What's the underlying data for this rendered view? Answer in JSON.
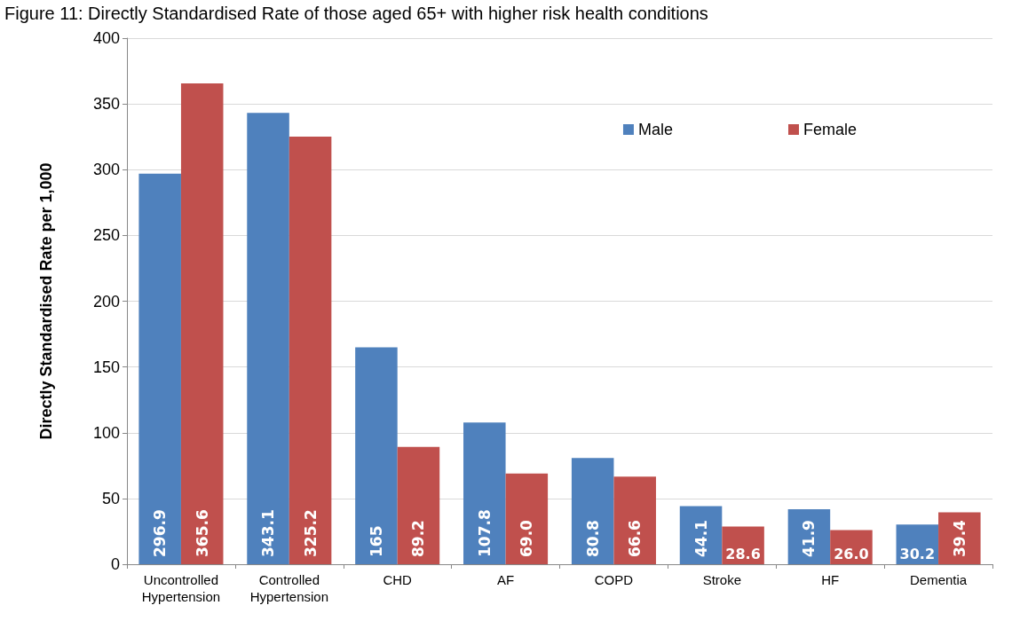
{
  "chart_data": {
    "type": "bar",
    "title": "Figure 11: Directly Standardised Rate of those aged 65+ with higher risk health conditions",
    "ylabel": "Directly Standardised Rate per 1,000",
    "categories": [
      "Uncontrolled\nHypertension",
      "Controlled\nHypertension",
      "CHD",
      "AF",
      "COPD",
      "Stroke",
      "HF",
      "Dementia"
    ],
    "series": [
      {
        "name": "Male",
        "color": "#4f81bd",
        "values": [
          296.9,
          343.1,
          165,
          107.8,
          80.8,
          44.1,
          41.9,
          30.2
        ]
      },
      {
        "name": "Female",
        "color": "#c0504d",
        "values": [
          365.6,
          325.2,
          89.2,
          69.0,
          66.6,
          28.6,
          26.0,
          39.4
        ]
      }
    ],
    "value_labels": [
      [
        "296.9",
        "343.1",
        "165",
        "107.8",
        "80.8",
        "44.1",
        "41.9",
        "30.2"
      ],
      [
        "365.6",
        "325.2",
        "89.2",
        "69.0",
        "66.6",
        "28.6",
        "26.0",
        "39.4"
      ]
    ],
    "ylim": [
      0,
      400
    ],
    "yticks": [
      0,
      50,
      100,
      150,
      200,
      250,
      300,
      350,
      400
    ],
    "grid": "y",
    "legend": "top right"
  }
}
